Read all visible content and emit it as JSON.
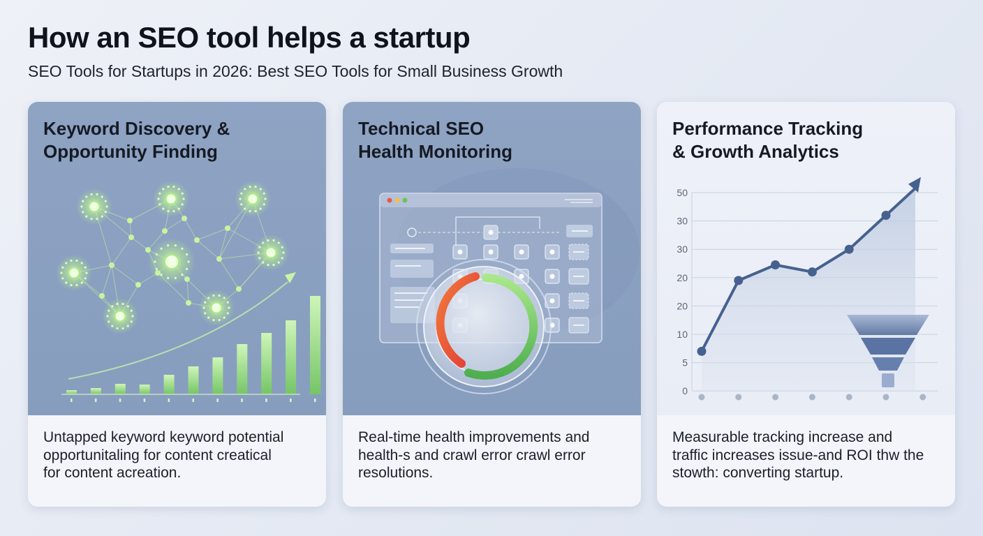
{
  "header": {
    "title": "How an SEO tool helps a startup",
    "subtitle": "SEO Tools for Startups in 2026: Best SEO Tools for Small Business Growth"
  },
  "cards": [
    {
      "title": "Keyword Discovery &\nOpportunity Finding",
      "description": "Untapped keyword keyword potential\nopportunitaling for content creatical\nfor content acreation.",
      "illustration": "keyword-network-and-growth-bars"
    },
    {
      "title": "Technical SEO\nHealth Monitoring",
      "description": "Real-time health improvements and\nhealth-s and crawl error crawl error\nresolutions.",
      "illustration": "site-map-window-with-health-gauge"
    },
    {
      "title": "Performance Tracking\n& Growth Analytics",
      "description": "Measurable tracking increase and\ntraffic increases issue-and ROI thw the\nstowth: converting startup.",
      "illustration": "line-chart-with-funnel"
    }
  ],
  "chart_data": {
    "type": "line",
    "title": "",
    "xlabel": "",
    "ylabel": "",
    "y_tick_labels": [
      "50",
      "30",
      "30",
      "20",
      "20",
      "10",
      "5",
      "0"
    ],
    "x": [
      1,
      2,
      3,
      4,
      5,
      6,
      7
    ],
    "series": [
      {
        "values": [
          7,
          19.5,
          24.5,
          22,
          30,
          42,
          53.5
        ]
      }
    ],
    "grid": true,
    "legend": "none"
  },
  "colors": {
    "panel_blue": "#8ca1c2",
    "network_green": "#c9f7a8",
    "bar_green": "#9be07f",
    "gauge_red": "#e8473b",
    "gauge_green": "#5cb85a",
    "line_blue": "#46618f",
    "funnel_blue": "#5f78a6"
  }
}
